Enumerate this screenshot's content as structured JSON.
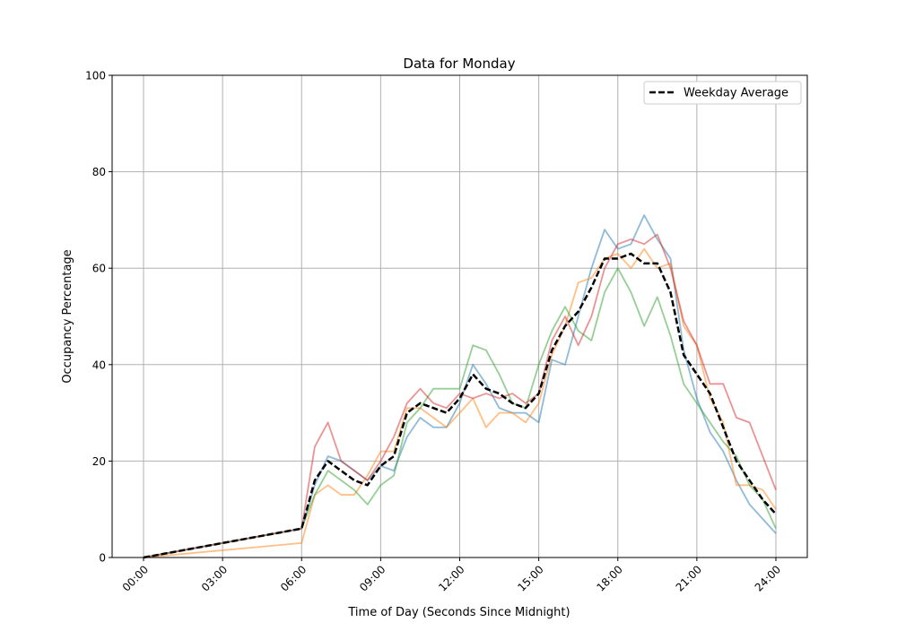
{
  "chart_data": {
    "type": "line",
    "title": "Data for Monday",
    "xlabel": "Time of Day (Seconds Since Midnight)",
    "ylabel": "Occupancy Percentage",
    "ylim": [
      0,
      100
    ],
    "xlim": [
      "00:00",
      "24:00"
    ],
    "grid": true,
    "legend_placement": "top-right",
    "x_ticks": [
      "00:00",
      "03:00",
      "06:00",
      "09:00",
      "12:00",
      "15:00",
      "18:00",
      "21:00",
      "24:00"
    ],
    "y_ticks": [
      0,
      20,
      40,
      60,
      80,
      100
    ],
    "x": [
      "00:00",
      "06:00",
      "06:30",
      "07:00",
      "07:30",
      "08:00",
      "08:30",
      "09:00",
      "09:30",
      "10:00",
      "10:30",
      "11:00",
      "11:30",
      "12:00",
      "12:30",
      "13:00",
      "13:30",
      "14:00",
      "14:30",
      "15:00",
      "15:30",
      "16:00",
      "16:30",
      "17:00",
      "17:30",
      "18:00",
      "18:30",
      "19:00",
      "19:30",
      "20:00",
      "20:30",
      "21:00",
      "21:30",
      "22:00",
      "22:30",
      "23:00",
      "23:30",
      "24:00"
    ],
    "series": [
      {
        "color": "#1f77b4",
        "style": "solid",
        "values": [
          0,
          6,
          15,
          21,
          20,
          18,
          16,
          19,
          18,
          25,
          29,
          27,
          27,
          32,
          40,
          36,
          31,
          30,
          30,
          28,
          41,
          40,
          50,
          60,
          68,
          64,
          65,
          71,
          66,
          62,
          43,
          33,
          26,
          22,
          16,
          11,
          8,
          5
        ]
      },
      {
        "color": "#ff7f0e",
        "style": "solid",
        "values": [
          0,
          3,
          13,
          15,
          13,
          13,
          17,
          22,
          22,
          31,
          31,
          29,
          27,
          30,
          33,
          27,
          30,
          30,
          28,
          32,
          42,
          48,
          57,
          58,
          62,
          63,
          60,
          64,
          60,
          61,
          48,
          44,
          33,
          28,
          15,
          15,
          14,
          10
        ]
      },
      {
        "color": "#2ca02c",
        "style": "solid",
        "values": [
          0,
          6,
          13,
          18,
          16,
          14,
          11,
          15,
          17,
          28,
          31,
          35,
          35,
          35,
          44,
          43,
          38,
          32,
          31,
          40,
          47,
          52,
          47,
          45,
          55,
          60,
          55,
          48,
          54,
          46,
          36,
          32,
          28,
          24,
          21,
          15,
          12,
          6
        ]
      },
      {
        "color": "#d62728",
        "style": "solid",
        "values": [
          0,
          6,
          23,
          28,
          20,
          18,
          16,
          20,
          25,
          32,
          35,
          32,
          31,
          34,
          33,
          34,
          33,
          34,
          32,
          34,
          45,
          50,
          44,
          50,
          60,
          65,
          66,
          65,
          67,
          60,
          49,
          44,
          36,
          36,
          29,
          28,
          21,
          14
        ]
      },
      {
        "name": "Weekday Average",
        "color": "#000000",
        "style": "dashed",
        "values": [
          0,
          6,
          16,
          20,
          18,
          16,
          15,
          19,
          21,
          30,
          32,
          31,
          30,
          33,
          38,
          35,
          34,
          32,
          31,
          34,
          43,
          48,
          51,
          56,
          62,
          62,
          63,
          61,
          61,
          55,
          42,
          38,
          34,
          27,
          20,
          16,
          12,
          9
        ]
      }
    ]
  }
}
